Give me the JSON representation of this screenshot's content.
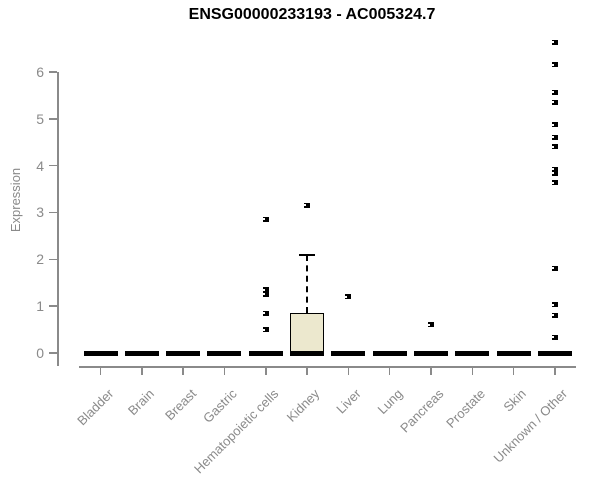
{
  "chart_data": {
    "type": "boxplot",
    "title": "ENSG00000233193 - AC005324.7",
    "ylabel": "Expression",
    "xlabel": "",
    "ylim": [
      0,
      6.8
    ],
    "yticks": [
      0,
      1,
      2,
      3,
      4,
      5,
      6
    ],
    "grid": false,
    "legend": "none",
    "categories": [
      "Bladder",
      "Brain",
      "Breast",
      "Gastric",
      "Hematopoietic cells",
      "Kidney",
      "Liver",
      "Lung",
      "Pancreas",
      "Prostate",
      "Skin",
      "Unknown / Other"
    ],
    "series": [
      {
        "name": "Bladder",
        "q1": 0,
        "median": 0,
        "q3": 0,
        "whisker_low": 0,
        "whisker_high": 0,
        "outliers": []
      },
      {
        "name": "Brain",
        "q1": 0,
        "median": 0,
        "q3": 0,
        "whisker_low": 0,
        "whisker_high": 0,
        "outliers": []
      },
      {
        "name": "Breast",
        "q1": 0,
        "median": 0,
        "q3": 0,
        "whisker_low": 0,
        "whisker_high": 0,
        "outliers": []
      },
      {
        "name": "Gastric",
        "q1": 0,
        "median": 0,
        "q3": 0,
        "whisker_low": 0,
        "whisker_high": 0,
        "outliers": []
      },
      {
        "name": "Hematopoietic cells",
        "q1": 0,
        "median": 0,
        "q3": 0,
        "whisker_low": 0,
        "whisker_high": 0,
        "outliers": [
          0.5,
          0.85,
          1.25,
          1.35,
          2.85
        ]
      },
      {
        "name": "Kidney",
        "q1": 0,
        "median": 0,
        "q3": 0.85,
        "whisker_low": 0,
        "whisker_high": 2.1,
        "outliers": [
          3.15
        ]
      },
      {
        "name": "Liver",
        "q1": 0,
        "median": 0,
        "q3": 0,
        "whisker_low": 0,
        "whisker_high": 0,
        "outliers": [
          1.2
        ]
      },
      {
        "name": "Lung",
        "q1": 0,
        "median": 0,
        "q3": 0,
        "whisker_low": 0,
        "whisker_high": 0,
        "outliers": []
      },
      {
        "name": "Pancreas",
        "q1": 0,
        "median": 0,
        "q3": 0,
        "whisker_low": 0,
        "whisker_high": 0,
        "outliers": [
          0.6
        ]
      },
      {
        "name": "Prostate",
        "q1": 0,
        "median": 0,
        "q3": 0,
        "whisker_low": 0,
        "whisker_high": 0,
        "outliers": []
      },
      {
        "name": "Skin",
        "q1": 0,
        "median": 0,
        "q3": 0,
        "whisker_low": 0,
        "whisker_high": 0,
        "outliers": []
      },
      {
        "name": "Unknown / Other",
        "q1": 0,
        "median": 0,
        "q3": 0,
        "whisker_low": 0,
        "whisker_high": 0,
        "outliers": [
          0.34,
          0.81,
          1.03,
          1.81,
          3.63,
          3.84,
          3.92,
          4.4,
          4.61,
          4.87,
          5.35,
          5.57,
          6.15,
          6.63
        ]
      }
    ],
    "colors": {
      "box_fill": "#ECE8CE",
      "box_border": "#000000",
      "median": "#000000",
      "marker": "#000000",
      "axis": "#8A8A8A",
      "title": "#000000"
    }
  }
}
